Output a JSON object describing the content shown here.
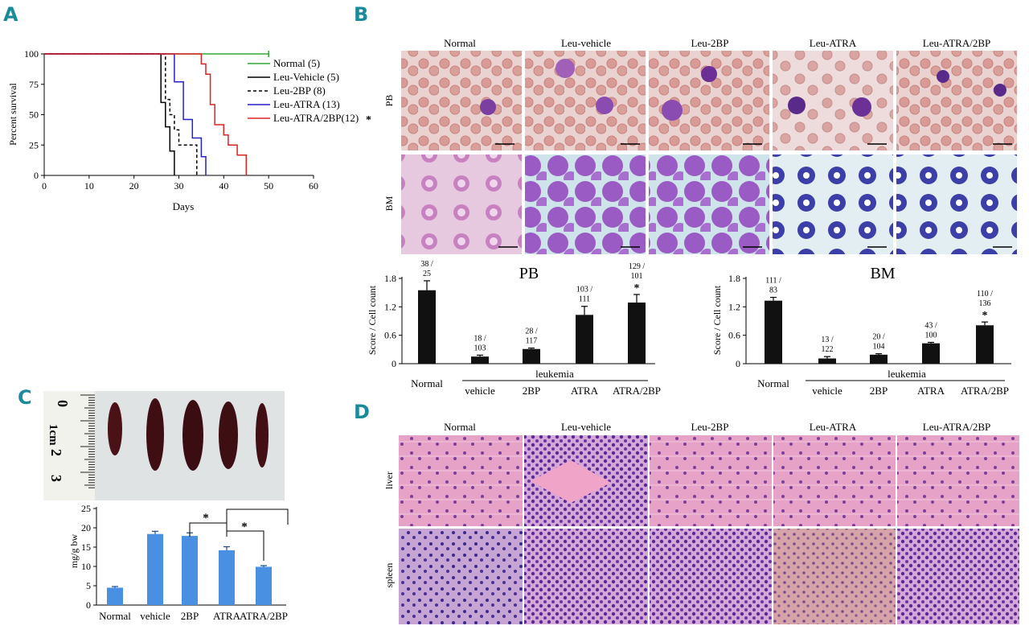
{
  "panels": {
    "a": "A",
    "b": "B",
    "c": "C",
    "d": "D"
  },
  "colors": {
    "normal": "#33aa33",
    "vehicle": "#000000",
    "two_bp": "#000000",
    "atra": "#2222cc",
    "atra_2bp": "#dd2222",
    "bar_black": "#111111",
    "bar_blue": "#4a90e2",
    "panel_letter": "#1b8a9a"
  },
  "panel_a": {
    "legend": [
      "Normal (5)",
      "Leu-Vehicle (5)",
      "Leu-2BP (8)",
      "Leu-ATRA (13)",
      "Leu-ATRA/2BP(12)"
    ],
    "significance": "*"
  },
  "panel_b": {
    "columns": [
      "Normal",
      "Leu-vehicle",
      "Leu-2BP",
      "Leu-ATRA",
      "Leu-ATRA/2BP"
    ],
    "rows": [
      "PB",
      "BM"
    ],
    "leukemia_label": "leukemia",
    "significance": "*"
  },
  "panel_c": {
    "ruler": {
      "zero": "0",
      "one_cm": "1cm",
      "two": "2",
      "three": "3"
    },
    "significance": "*"
  },
  "panel_d": {
    "columns": [
      "Normal",
      "Leu-vehicle",
      "Leu-2BP",
      "Leu-ATRA",
      "Leu-ATRA/2BP"
    ],
    "rows": [
      "liver",
      "spleen"
    ]
  },
  "chart_data": [
    {
      "id": "survival",
      "type": "line",
      "xlabel": "Days",
      "ylabel": "Percent survival",
      "xlim": [
        0,
        60
      ],
      "ylim": [
        0,
        100
      ],
      "xticks": [
        0,
        10,
        20,
        30,
        40,
        50,
        60
      ],
      "yticks": [
        0,
        25,
        50,
        75,
        100
      ],
      "series": [
        {
          "name": "Normal (5)",
          "x": [
            0,
            50
          ],
          "y": [
            100,
            100
          ]
        },
        {
          "name": "Leu-Vehicle (5)",
          "x": [
            0,
            26,
            26,
            27,
            27,
            28,
            28,
            29,
            29
          ],
          "y": [
            100,
            100,
            60,
            60,
            40,
            40,
            20,
            20,
            0
          ]
        },
        {
          "name": "Leu-2BP (8)",
          "x": [
            0,
            27,
            27,
            28,
            28,
            29,
            29,
            30,
            30,
            34,
            34
          ],
          "y": [
            100,
            100,
            62.5,
            62.5,
            50,
            50,
            37.5,
            37.5,
            25,
            25,
            0
          ]
        },
        {
          "name": "Leu-ATRA (13)",
          "x": [
            0,
            29,
            29,
            31,
            31,
            33,
            33,
            35,
            35,
            36,
            36
          ],
          "y": [
            100,
            100,
            77,
            77,
            46,
            46,
            30.8,
            30.8,
            15.4,
            15.4,
            0
          ]
        },
        {
          "name": "Leu-ATRA/2BP(12)",
          "x": [
            0,
            35,
            35,
            36,
            36,
            37,
            37,
            38,
            38,
            40,
            40,
            41,
            41,
            43,
            43,
            45,
            45
          ],
          "y": [
            100,
            100,
            91.7,
            91.7,
            83.3,
            83.3,
            58.3,
            58.3,
            41.7,
            41.7,
            33.3,
            33.3,
            25,
            25,
            16.7,
            16.7,
            0
          ]
        }
      ]
    },
    {
      "id": "pb_score",
      "type": "bar",
      "title": "PB",
      "ylabel": "Score / Cell count",
      "ylim": [
        0,
        1.8
      ],
      "yticks": [
        "0",
        "0.6",
        "1.2",
        "1.8"
      ],
      "categories": [
        "Normal",
        "vehicle",
        "2BP",
        "ATRA",
        "ATRA/2BP"
      ],
      "values": [
        1.55,
        0.15,
        0.31,
        1.03,
        1.29
      ],
      "errors": [
        0.2,
        0.03,
        0.02,
        0.18,
        0.17
      ],
      "labels": [
        [
          "38 /",
          "25"
        ],
        [
          "18 /",
          "103"
        ],
        [
          "28 /",
          "117"
        ],
        [
          "103 /",
          "111"
        ],
        [
          "129 /",
          "101"
        ]
      ],
      "significant": [
        false,
        false,
        false,
        false,
        true
      ]
    },
    {
      "id": "bm_score",
      "type": "bar",
      "title": "BM",
      "ylabel": "Score / Cell count",
      "ylim": [
        0,
        1.8
      ],
      "yticks": [
        "0",
        "0.6",
        "1.2",
        "1.8"
      ],
      "categories": [
        "Normal",
        "vehicle",
        "2BP",
        "ATRA",
        "ATRA/2BP"
      ],
      "values": [
        1.33,
        0.11,
        0.19,
        0.43,
        0.81
      ],
      "errors": [
        0.07,
        0.04,
        0.02,
        0.02,
        0.07
      ],
      "labels": [
        [
          "111 /",
          "83"
        ],
        [
          "13 /",
          "122"
        ],
        [
          "20 /",
          "104"
        ],
        [
          "43 /",
          "100"
        ],
        [
          "110 /",
          "136"
        ]
      ],
      "significant": [
        false,
        false,
        false,
        false,
        true
      ]
    },
    {
      "id": "spleen_weight",
      "type": "bar",
      "ylabel": "mg/g bw",
      "ylim": [
        0,
        25
      ],
      "yticks": [
        "0",
        "5",
        "10",
        "15",
        "20",
        "25"
      ],
      "categories": [
        "Normal",
        "vehicle",
        "2BP",
        "ATRA",
        "ATRA/2BP"
      ],
      "values": [
        4.5,
        18.4,
        17.9,
        14.2,
        9.9
      ],
      "errors": [
        0.3,
        0.7,
        0.8,
        0.9,
        0.3
      ]
    }
  ]
}
